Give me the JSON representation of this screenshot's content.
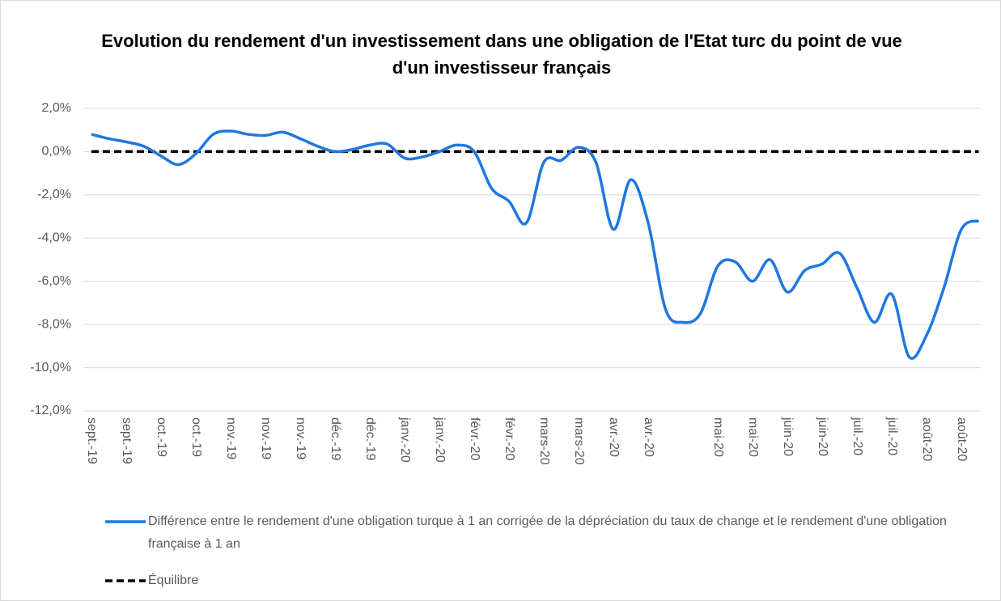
{
  "chart_data": {
    "type": "line",
    "title": "Evolution du rendement d'un investissement dans une obligation de l'Etat turc du point de vue d'un investisseur français",
    "categories": [
      "sept.-19",
      null,
      "sept.-19",
      null,
      "oct.-19",
      null,
      "oct.-19",
      null,
      "nov.-19",
      null,
      "nov.-19",
      null,
      "nov.-19",
      null,
      "déc.-19",
      null,
      "déc.-19",
      null,
      "janv.-20",
      null,
      "janv.-20",
      null,
      "févr.-20",
      null,
      "févr.-20",
      null,
      "mars-20",
      null,
      "mars-20",
      null,
      "avr.-20",
      null,
      "avr.-20",
      null,
      null,
      null,
      "mai-20",
      null,
      "mai-20",
      null,
      "juin-20",
      null,
      "juin-20",
      null,
      "juil.-20",
      null,
      "juil.-20",
      null,
      "août-20",
      null,
      "août-20",
      null
    ],
    "series": [
      {
        "name": "Différence entre le rendement d'une obligation turque à 1 an corrigée de la dépréciation du taux de change et le rendement d'une obligation française à 1 an",
        "color": "#1f77e0",
        "smooth": true,
        "values": [
          0.8,
          0.6,
          0.45,
          0.25,
          -0.2,
          -0.6,
          -0.1,
          0.8,
          0.95,
          0.8,
          0.75,
          0.9,
          0.6,
          0.25,
          0.0,
          0.1,
          0.3,
          0.35,
          -0.3,
          -0.25,
          0.0,
          0.3,
          0.0,
          -1.7,
          -2.3,
          -3.3,
          -0.5,
          -0.4,
          0.2,
          -0.5,
          -3.6,
          -1.3,
          -3.3,
          -7.3,
          -7.9,
          -7.5,
          -5.3,
          -5.1,
          -6.0,
          -5.0,
          -6.5,
          -5.5,
          -5.2,
          -4.7,
          -6.3,
          -7.9,
          -6.6,
          -9.5,
          -8.5,
          -6.3,
          -3.6,
          -3.2
        ]
      },
      {
        "name": "Équilibre",
        "color": "#000000",
        "dashed": true,
        "values": [
          0,
          0,
          0,
          0,
          0,
          0,
          0,
          0,
          0,
          0,
          0,
          0,
          0,
          0,
          0,
          0,
          0,
          0,
          0,
          0,
          0,
          0,
          0,
          0,
          0,
          0,
          0,
          0,
          0,
          0,
          0,
          0,
          0,
          0,
          0,
          0,
          0,
          0,
          0,
          0,
          0,
          0,
          0,
          0,
          0,
          0,
          0,
          0,
          0,
          0,
          0,
          0
        ]
      }
    ],
    "ylim": [
      -12,
      2
    ],
    "yticks": [
      {
        "value": 2,
        "label": "2,0%"
      },
      {
        "value": 0,
        "label": "0,0%"
      },
      {
        "value": -2,
        "label": "-2,0%"
      },
      {
        "value": -4,
        "label": "-4,0%"
      },
      {
        "value": -6,
        "label": "-6,0%"
      },
      {
        "value": -8,
        "label": "-8,0%"
      },
      {
        "value": -10,
        "label": "-10,0%"
      },
      {
        "value": -12,
        "label": "-12,0%"
      }
    ],
    "grid": true,
    "legend": "bottom"
  }
}
